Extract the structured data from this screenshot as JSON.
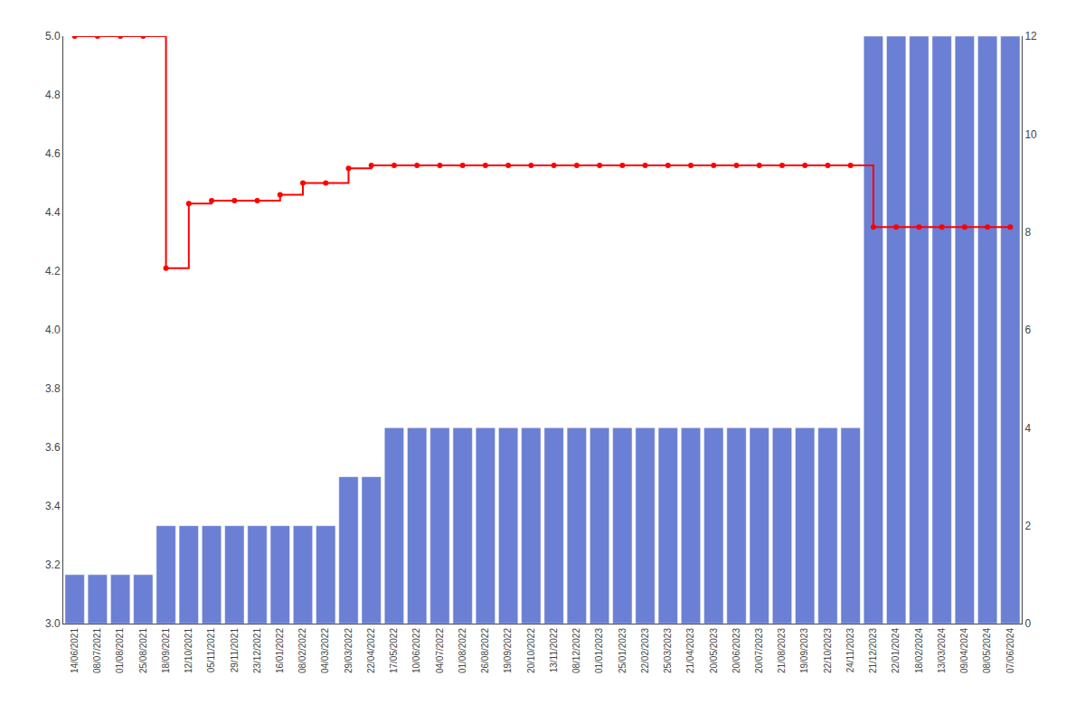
{
  "chart_data": {
    "type": "bar",
    "categories": [
      "14/06/2021",
      "08/07/2021",
      "01/08/2021",
      "25/08/2021",
      "18/09/2021",
      "12/10/2021",
      "05/11/2021",
      "29/11/2021",
      "23/12/2021",
      "16/01/2022",
      "08/02/2022",
      "04/03/2022",
      "29/03/2022",
      "22/04/2022",
      "17/05/2022",
      "10/06/2022",
      "04/07/2022",
      "01/08/2022",
      "26/08/2022",
      "19/09/2022",
      "20/10/2022",
      "13/11/2022",
      "08/12/2022",
      "01/01/2023",
      "25/01/2023",
      "22/02/2023",
      "25/03/2023",
      "21/04/2023",
      "20/05/2023",
      "20/06/2023",
      "20/07/2023",
      "21/08/2023",
      "19/09/2023",
      "22/10/2023",
      "24/11/2023",
      "21/12/2023",
      "22/01/2024",
      "18/02/2024",
      "13/03/2024",
      "09/04/2024",
      "08/05/2024",
      "07/06/2024"
    ],
    "series": [
      {
        "type": "bar",
        "color": "#6B7FD4",
        "axis": "y2",
        "values": [
          1,
          1,
          1,
          1,
          2,
          2,
          2,
          2,
          2,
          2,
          2,
          2,
          3,
          3,
          4,
          4,
          4,
          4,
          4,
          4,
          4,
          4,
          4,
          4,
          4,
          4,
          4,
          4,
          4,
          4,
          4,
          4,
          4,
          4,
          4,
          12,
          12,
          12,
          12,
          12,
          12,
          12
        ]
      },
      {
        "type": "line",
        "color": "#FF0000",
        "line_style": "step",
        "marker": "circle",
        "values": [
          5.0,
          5.0,
          5.0,
          5.0,
          4.21,
          4.43,
          4.44,
          4.44,
          4.44,
          4.46,
          4.5,
          4.5,
          4.55,
          4.56,
          4.56,
          4.56,
          4.56,
          4.56,
          4.56,
          4.56,
          4.56,
          4.56,
          4.56,
          4.56,
          4.56,
          4.56,
          4.56,
          4.56,
          4.56,
          4.56,
          4.56,
          4.56,
          4.56,
          4.56,
          4.56,
          4.35,
          4.35,
          4.35,
          4.35,
          4.35,
          4.35,
          4.35
        ]
      }
    ],
    "ylim": [
      3.0,
      5.0
    ],
    "yticks": [
      {
        "value": 3.0,
        "label": "3.0"
      },
      3.2,
      3.4,
      3.6,
      3.8,
      {
        "value": 4.0,
        "label": "4.0"
      },
      4.2,
      4.4,
      4.6,
      4.8,
      {
        "value": 5.0,
        "label": "5.0"
      }
    ],
    "y2lim": [
      0,
      12
    ],
    "y2ticks": [
      0,
      2,
      4,
      6,
      8,
      10,
      12
    ],
    "grid": false
  }
}
